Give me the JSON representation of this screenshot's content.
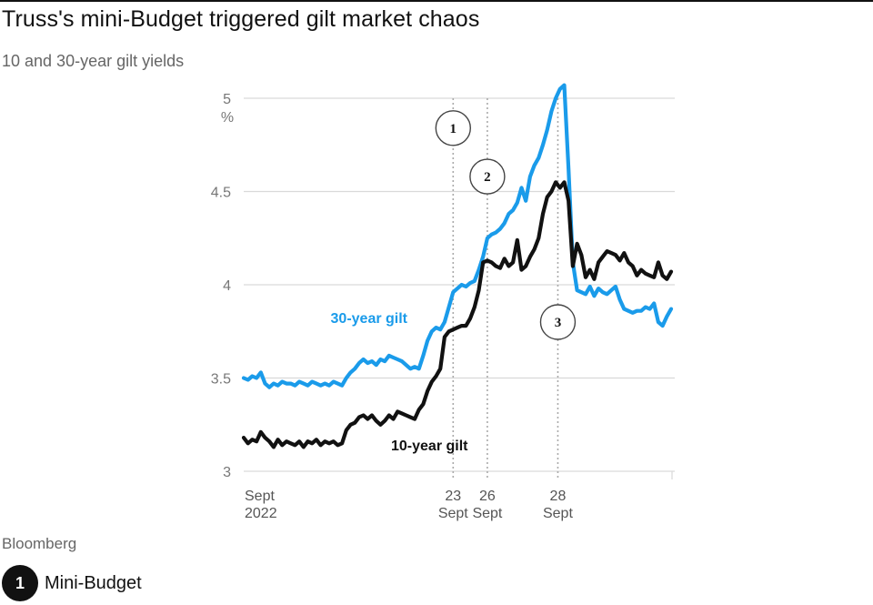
{
  "title": "Truss's mini-Budget triggered gilt market chaos",
  "subtitle": "10 and 30-year gilt yields",
  "source": "Bloomberg",
  "legend": {
    "marker": "1",
    "text": "Mini-Budget"
  },
  "colors": {
    "thirty": "#1a9bea",
    "ten": "#111111",
    "grid": "#d9d9d9",
    "marker_line": "#aaaaaa"
  },
  "chart_data": {
    "type": "line",
    "title": "Truss's mini-Budget triggered gilt market chaos",
    "subtitle": "10 and 30-year gilt yields",
    "ylabel": "%",
    "ylim": [
      3,
      5
    ],
    "yticks": [
      3,
      3.5,
      4,
      4.5,
      5
    ],
    "ytick_labels": [
      "3",
      "3.5",
      "4",
      "4.5",
      "5"
    ],
    "unit_label": "%",
    "xlim": [
      0,
      100
    ],
    "xticks": [
      {
        "x": 0,
        "line1": "Sept",
        "line2": "2022"
      },
      {
        "x": 49,
        "line1": "23",
        "line2": "Sept"
      },
      {
        "x": 57,
        "line1": "26",
        "line2": "Sept"
      },
      {
        "x": 73.5,
        "line1": "28",
        "line2": "Sept"
      }
    ],
    "markers": [
      {
        "label": "1",
        "x": 49,
        "y": 4.84
      },
      {
        "label": "2",
        "x": 57,
        "y": 4.58
      },
      {
        "label": "3",
        "x": 73.5,
        "y": 3.8
      }
    ],
    "series": [
      {
        "name": "30-year gilt",
        "label": "30-year gilt",
        "points": [
          [
            0,
            3.5
          ],
          [
            1,
            3.49
          ],
          [
            2,
            3.51
          ],
          [
            3,
            3.5
          ],
          [
            4,
            3.53
          ],
          [
            5,
            3.47
          ],
          [
            6,
            3.45
          ],
          [
            7,
            3.47
          ],
          [
            8,
            3.46
          ],
          [
            9,
            3.48
          ],
          [
            10,
            3.47
          ],
          [
            11,
            3.47
          ],
          [
            12,
            3.46
          ],
          [
            13,
            3.48
          ],
          [
            14,
            3.47
          ],
          [
            15,
            3.46
          ],
          [
            16,
            3.48
          ],
          [
            17,
            3.47
          ],
          [
            18,
            3.46
          ],
          [
            19,
            3.47
          ],
          [
            20,
            3.46
          ],
          [
            21,
            3.48
          ],
          [
            22,
            3.47
          ],
          [
            23,
            3.46
          ],
          [
            24,
            3.5
          ],
          [
            25,
            3.53
          ],
          [
            26,
            3.55
          ],
          [
            27,
            3.58
          ],
          [
            28,
            3.6
          ],
          [
            29,
            3.58
          ],
          [
            30,
            3.59
          ],
          [
            31,
            3.57
          ],
          [
            32,
            3.6
          ],
          [
            33,
            3.59
          ],
          [
            34,
            3.62
          ],
          [
            35,
            3.61
          ],
          [
            36,
            3.6
          ],
          [
            37,
            3.59
          ],
          [
            38,
            3.57
          ],
          [
            39,
            3.55
          ],
          [
            40,
            3.56
          ],
          [
            41,
            3.55
          ],
          [
            42,
            3.62
          ],
          [
            43,
            3.7
          ],
          [
            44,
            3.75
          ],
          [
            45,
            3.77
          ],
          [
            46,
            3.76
          ],
          [
            47,
            3.8
          ],
          [
            48,
            3.88
          ],
          [
            49,
            3.96
          ],
          [
            50,
            3.98
          ],
          [
            51,
            4.0
          ],
          [
            52,
            3.99
          ],
          [
            53,
            4.01
          ],
          [
            54,
            4.02
          ],
          [
            55,
            4.08
          ],
          [
            56,
            4.15
          ],
          [
            57,
            4.25
          ],
          [
            58,
            4.27
          ],
          [
            59,
            4.28
          ],
          [
            60,
            4.3
          ],
          [
            61,
            4.33
          ],
          [
            62,
            4.38
          ],
          [
            63,
            4.4
          ],
          [
            64,
            4.44
          ],
          [
            65,
            4.52
          ],
          [
            66,
            4.45
          ],
          [
            67,
            4.58
          ],
          [
            68,
            4.64
          ],
          [
            69,
            4.68
          ],
          [
            70,
            4.75
          ],
          [
            71,
            4.83
          ],
          [
            72,
            4.93
          ],
          [
            73,
            5.0
          ],
          [
            74,
            5.05
          ],
          [
            75,
            5.07
          ],
          [
            76,
            4.62
          ],
          [
            77,
            4.12
          ],
          [
            78,
            3.97
          ],
          [
            79,
            3.96
          ],
          [
            80,
            3.95
          ],
          [
            81,
            3.99
          ],
          [
            82,
            3.94
          ],
          [
            83,
            3.98
          ],
          [
            84,
            3.96
          ],
          [
            85,
            3.95
          ],
          [
            86,
            3.97
          ],
          [
            87,
            3.99
          ],
          [
            88,
            3.92
          ],
          [
            89,
            3.87
          ],
          [
            90,
            3.86
          ],
          [
            91,
            3.85
          ],
          [
            92,
            3.86
          ],
          [
            93,
            3.86
          ],
          [
            94,
            3.88
          ],
          [
            95,
            3.87
          ],
          [
            96,
            3.9
          ],
          [
            97,
            3.8
          ],
          [
            98,
            3.78
          ],
          [
            99,
            3.83
          ],
          [
            100,
            3.87
          ]
        ]
      },
      {
        "name": "10-year gilt",
        "label": "10-year gilt",
        "points": [
          [
            0,
            3.18
          ],
          [
            1,
            3.15
          ],
          [
            2,
            3.17
          ],
          [
            3,
            3.16
          ],
          [
            4,
            3.21
          ],
          [
            5,
            3.18
          ],
          [
            6,
            3.16
          ],
          [
            7,
            3.13
          ],
          [
            8,
            3.17
          ],
          [
            9,
            3.14
          ],
          [
            10,
            3.16
          ],
          [
            11,
            3.15
          ],
          [
            12,
            3.14
          ],
          [
            13,
            3.16
          ],
          [
            14,
            3.13
          ],
          [
            15,
            3.16
          ],
          [
            16,
            3.15
          ],
          [
            17,
            3.17
          ],
          [
            18,
            3.14
          ],
          [
            19,
            3.16
          ],
          [
            20,
            3.15
          ],
          [
            21,
            3.16
          ],
          [
            22,
            3.14
          ],
          [
            23,
            3.15
          ],
          [
            24,
            3.22
          ],
          [
            25,
            3.25
          ],
          [
            26,
            3.26
          ],
          [
            27,
            3.29
          ],
          [
            28,
            3.3
          ],
          [
            29,
            3.28
          ],
          [
            30,
            3.3
          ],
          [
            31,
            3.27
          ],
          [
            32,
            3.25
          ],
          [
            33,
            3.27
          ],
          [
            34,
            3.3
          ],
          [
            35,
            3.28
          ],
          [
            36,
            3.32
          ],
          [
            37,
            3.31
          ],
          [
            38,
            3.3
          ],
          [
            39,
            3.29
          ],
          [
            40,
            3.28
          ],
          [
            41,
            3.33
          ],
          [
            42,
            3.36
          ],
          [
            43,
            3.43
          ],
          [
            44,
            3.48
          ],
          [
            45,
            3.51
          ],
          [
            46,
            3.55
          ],
          [
            47,
            3.72
          ],
          [
            48,
            3.75
          ],
          [
            49,
            3.76
          ],
          [
            50,
            3.77
          ],
          [
            51,
            3.78
          ],
          [
            52,
            3.78
          ],
          [
            53,
            3.82
          ],
          [
            54,
            3.88
          ],
          [
            55,
            3.97
          ],
          [
            56,
            4.12
          ],
          [
            57,
            4.13
          ],
          [
            58,
            4.12
          ],
          [
            59,
            4.1
          ],
          [
            60,
            4.09
          ],
          [
            61,
            4.14
          ],
          [
            62,
            4.1
          ],
          [
            63,
            4.12
          ],
          [
            64,
            4.24
          ],
          [
            65,
            4.08
          ],
          [
            66,
            4.1
          ],
          [
            67,
            4.15
          ],
          [
            68,
            4.19
          ],
          [
            69,
            4.25
          ],
          [
            70,
            4.38
          ],
          [
            71,
            4.47
          ],
          [
            72,
            4.5
          ],
          [
            73,
            4.55
          ],
          [
            74,
            4.52
          ],
          [
            75,
            4.55
          ],
          [
            76,
            4.45
          ],
          [
            77,
            4.1
          ],
          [
            78,
            4.22
          ],
          [
            79,
            4.16
          ],
          [
            80,
            4.04
          ],
          [
            81,
            4.08
          ],
          [
            82,
            4.03
          ],
          [
            83,
            4.12
          ],
          [
            84,
            4.15
          ],
          [
            85,
            4.18
          ],
          [
            86,
            4.17
          ],
          [
            87,
            4.16
          ],
          [
            88,
            4.13
          ],
          [
            89,
            4.17
          ],
          [
            90,
            4.12
          ],
          [
            91,
            4.1
          ],
          [
            92,
            4.05
          ],
          [
            93,
            4.08
          ],
          [
            94,
            4.06
          ],
          [
            95,
            4.05
          ],
          [
            96,
            4.04
          ],
          [
            97,
            4.12
          ],
          [
            98,
            4.05
          ],
          [
            99,
            4.03
          ],
          [
            100,
            4.07
          ]
        ]
      }
    ]
  }
}
